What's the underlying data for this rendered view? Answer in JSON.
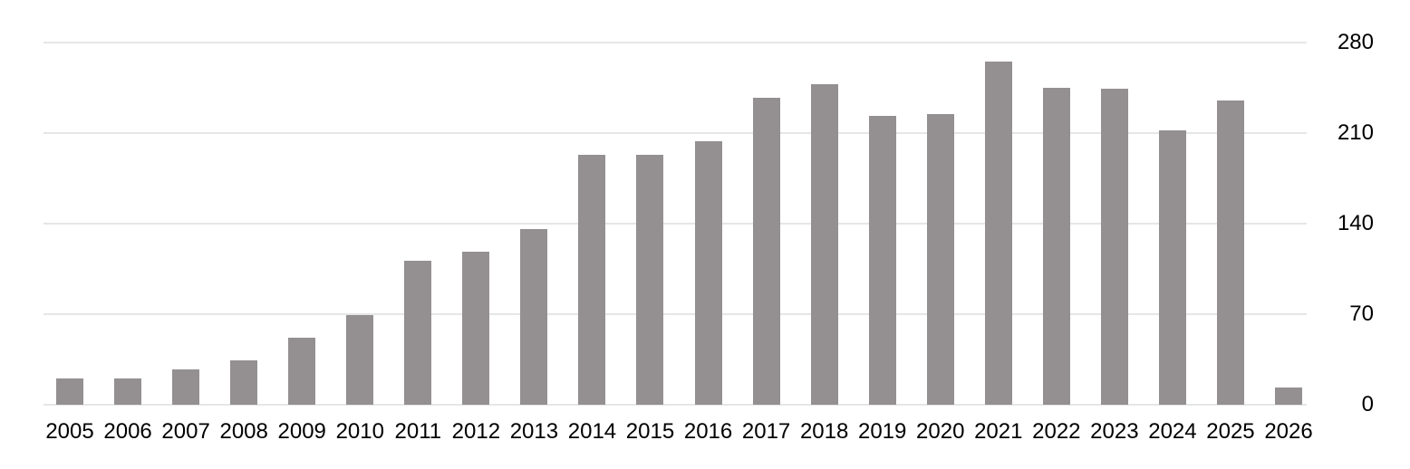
{
  "chart_data": {
    "type": "bar",
    "title": "",
    "xlabel": "",
    "ylabel": "",
    "categories": [
      "2005",
      "2006",
      "2007",
      "2008",
      "2009",
      "2010",
      "2011",
      "2012",
      "2013",
      "2014",
      "2015",
      "2016",
      "2017",
      "2018",
      "2019",
      "2020",
      "2021",
      "2022",
      "2023",
      "2024",
      "2025",
      "2026"
    ],
    "values": [
      20,
      20,
      27,
      34,
      52,
      69,
      111,
      118,
      136,
      193,
      193,
      204,
      237,
      248,
      223,
      225,
      265,
      245,
      244,
      212,
      235,
      13
    ],
    "ylim": [
      0,
      280
    ],
    "yticks": [
      0,
      70,
      140,
      210,
      280
    ],
    "y_axis_position": "right",
    "grid": true,
    "legend": false,
    "colors": {
      "bar": "#949091",
      "gridline": "#e6e6e6",
      "label": "#000000",
      "background": "#ffffff"
    }
  }
}
